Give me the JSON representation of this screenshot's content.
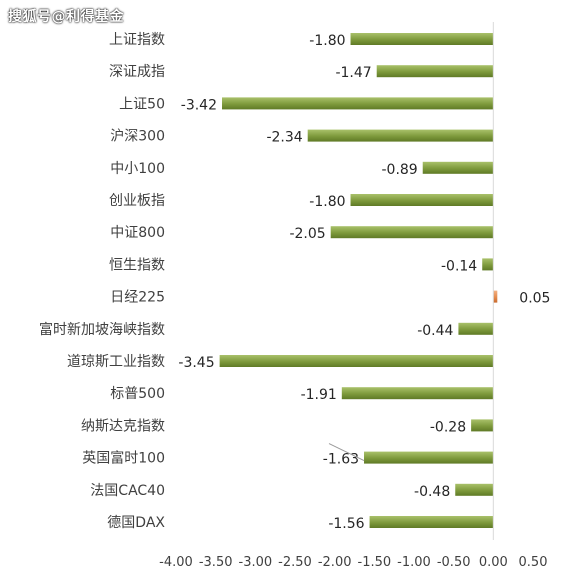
{
  "watermark": "搜狐号@利得基金",
  "chart_data": {
    "type": "bar",
    "orientation": "horizontal",
    "categories": [
      "上证指数",
      "深证成指",
      "上证50",
      "沪深300",
      "中小100",
      "创业板指",
      "中证800",
      "恒生指数",
      "日经225",
      "富时新加坡海峡指数",
      "道琼斯工业指数",
      "标普500",
      "纳斯达克指数",
      "英国富时100",
      "法国CAC40",
      "德国DAX"
    ],
    "values": [
      -1.8,
      -1.47,
      -3.42,
      -2.34,
      -0.89,
      -1.8,
      -2.05,
      -0.14,
      0.05,
      -0.44,
      -3.45,
      -1.91,
      -0.28,
      -1.63,
      -0.48,
      -1.56
    ],
    "value_labels": [
      "-1.80",
      "-1.47",
      "-3.42",
      "-2.34",
      "-0.89",
      "-1.80",
      "-2.05",
      "-0.14",
      "0.05",
      "-0.44",
      "-3.45",
      "-1.91",
      "-0.28",
      "-1.63",
      "-0.48",
      "-1.56"
    ],
    "xlim": [
      -4.0,
      0.5
    ],
    "xticks": [
      -4.0,
      -3.5,
      -3.0,
      -2.5,
      -2.0,
      -1.5,
      -1.0,
      -0.5,
      0.0,
      0.5
    ],
    "xtick_labels": [
      "-4.00",
      "-3.50",
      "-3.00",
      "-2.50",
      "-2.00",
      "-1.50",
      "-1.00",
      "-0.50",
      "0.00",
      "0.50"
    ],
    "title": "",
    "xlabel": "",
    "ylabel": "",
    "grid": false,
    "colors": {
      "negative": "#7e9a3c",
      "positive": "#e48b4d"
    }
  }
}
